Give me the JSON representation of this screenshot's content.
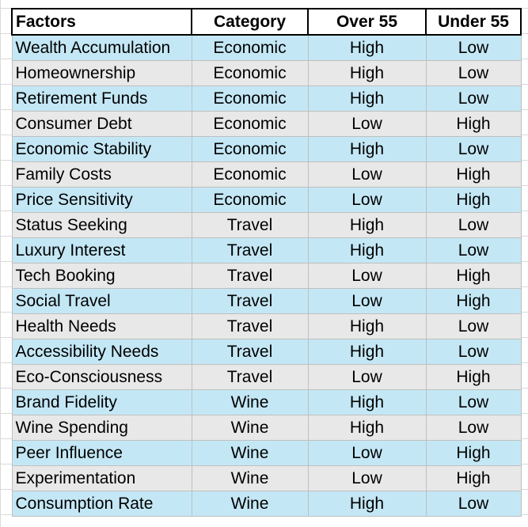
{
  "table": {
    "headers": [
      "Factors",
      "Category",
      "Over 55",
      "Under 55"
    ],
    "rows": [
      [
        "Wealth Accumulation",
        "Economic",
        "High",
        "Low"
      ],
      [
        "Homeownership",
        "Economic",
        "High",
        "Low"
      ],
      [
        "Retirement Funds",
        "Economic",
        "High",
        "Low"
      ],
      [
        "Consumer Debt",
        "Economic",
        "Low",
        "High"
      ],
      [
        "Economic Stability",
        "Economic",
        "High",
        "Low"
      ],
      [
        "Family Costs",
        "Economic",
        "Low",
        "High"
      ],
      [
        "Price Sensitivity",
        "Economic",
        "Low",
        "High"
      ],
      [
        "Status Seeking",
        "Travel",
        "High",
        "Low"
      ],
      [
        "Luxury Interest",
        "Travel",
        "High",
        "Low"
      ],
      [
        "Tech Booking",
        "Travel",
        "Low",
        "High"
      ],
      [
        "Social Travel",
        "Travel",
        "Low",
        "High"
      ],
      [
        "Health Needs",
        "Travel",
        "High",
        "Low"
      ],
      [
        "Accessibility Needs",
        "Travel",
        "High",
        "Low"
      ],
      [
        "Eco-Consciousness",
        "Travel",
        "Low",
        "High"
      ],
      [
        "Brand Fidelity",
        "Wine",
        "High",
        "Low"
      ],
      [
        "Wine Spending",
        "Wine",
        "High",
        "Low"
      ],
      [
        "Peer Influence",
        "Wine",
        "Low",
        "High"
      ],
      [
        "Experimentation",
        "Wine",
        "Low",
        "High"
      ],
      [
        "Consumption Rate",
        "Wine",
        "High",
        "Low"
      ]
    ]
  },
  "colors": {
    "row_odd": "#c4e7f5",
    "row_even": "#e8e8e8",
    "header_border": "#000000"
  }
}
